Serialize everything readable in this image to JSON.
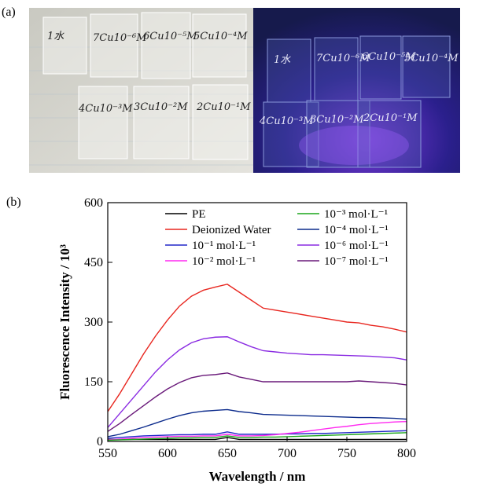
{
  "figure": {
    "label_a": "(a)",
    "label_b": "(b)",
    "photo_labels_left": [
      "1水",
      "7Cu10⁻⁶M",
      "6Cu10⁻⁵M",
      "5Cu10⁻⁴M",
      "4Cu10⁻³M",
      "3Cu10⁻²M",
      "2Cu10⁻¹M"
    ],
    "photo_labels_right": [
      "1水",
      "7Cu10⁻⁶M",
      "6Cu10⁻⁵M",
      "5Cu10⁻⁴M",
      "4Cu10⁻³M",
      "3Cu10⁻²M",
      "2Cu10⁻¹M"
    ]
  },
  "chart_data": {
    "type": "line",
    "xlabel": "Wavelength / nm",
    "ylabel": "Fluorescence Intensity / 10³",
    "x": [
      550,
      560,
      570,
      580,
      590,
      600,
      610,
      620,
      630,
      640,
      650,
      660,
      670,
      680,
      690,
      700,
      710,
      720,
      730,
      740,
      750,
      760,
      770,
      780,
      790,
      800
    ],
    "xlim": [
      550,
      800
    ],
    "xticks": [
      550,
      600,
      650,
      700,
      750,
      800
    ],
    "ylim": [
      0,
      600
    ],
    "yticks": [
      0,
      150,
      300,
      450,
      600
    ],
    "series": [
      {
        "name": "PE",
        "color": "#000000",
        "values": [
          5,
          5,
          5,
          5,
          5,
          5,
          5,
          5,
          5,
          5,
          10,
          5,
          5,
          5,
          5,
          5,
          5,
          5,
          5,
          5,
          5,
          5,
          5,
          5,
          5,
          5
        ]
      },
      {
        "name": "Deionized Water",
        "color": "#e8261f",
        "values": [
          75,
          120,
          170,
          220,
          265,
          305,
          340,
          365,
          380,
          388,
          395,
          375,
          355,
          335,
          330,
          325,
          320,
          315,
          310,
          305,
          300,
          298,
          292,
          288,
          282,
          275
        ]
      },
      {
        "name": "10⁻¹ mol·L⁻¹",
        "color": "#2027c8",
        "values": [
          8,
          10,
          12,
          14,
          15,
          16,
          17,
          17,
          18,
          18,
          24,
          18,
          18,
          18,
          18,
          19,
          19,
          20,
          20,
          21,
          22,
          23,
          24,
          25,
          26,
          27
        ]
      },
      {
        "name": "10⁻² mol·L⁻¹",
        "color": "#ff2af0",
        "values": [
          4,
          6,
          8,
          10,
          11,
          12,
          13,
          13,
          14,
          14,
          18,
          14,
          14,
          15,
          17,
          20,
          23,
          27,
          31,
          35,
          38,
          42,
          45,
          47,
          49,
          50
        ]
      },
      {
        "name": "10⁻³ mol·L⁻¹",
        "color": "#1aa51a",
        "values": [
          3,
          4,
          5,
          6,
          7,
          8,
          9,
          9,
          10,
          10,
          14,
          10,
          10,
          11,
          11,
          12,
          13,
          14,
          15,
          16,
          17,
          18,
          19,
          20,
          21,
          22
        ]
      },
      {
        "name": "10⁻⁴ mol·L⁻¹",
        "color": "#0c2b8c",
        "values": [
          12,
          18,
          27,
          36,
          46,
          56,
          65,
          72,
          76,
          78,
          80,
          75,
          72,
          68,
          67,
          66,
          65,
          64,
          63,
          62,
          61,
          60,
          60,
          59,
          58,
          56
        ]
      },
      {
        "name": "10⁻⁶ mol·L⁻¹",
        "color": "#8a2be2",
        "values": [
          35,
          70,
          105,
          140,
          175,
          205,
          230,
          248,
          258,
          262,
          263,
          250,
          238,
          228,
          225,
          222,
          220,
          218,
          218,
          217,
          216,
          215,
          214,
          212,
          210,
          205
        ]
      },
      {
        "name": "10⁻⁷ mol·L⁻¹",
        "color": "#6a1a7a",
        "values": [
          25,
          45,
          68,
          90,
          112,
          132,
          148,
          160,
          166,
          168,
          172,
          162,
          156,
          150,
          150,
          150,
          150,
          150,
          150,
          150,
          150,
          152,
          150,
          148,
          146,
          142
        ]
      }
    ]
  }
}
